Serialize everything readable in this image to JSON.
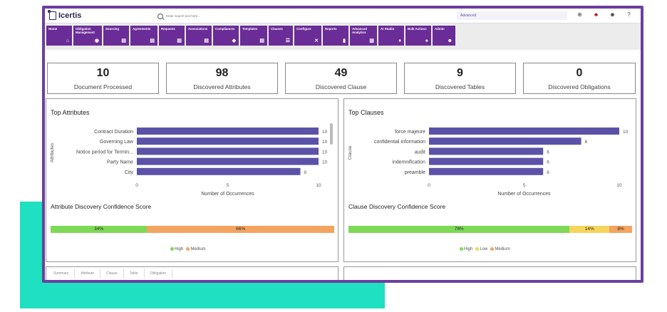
{
  "app": {
    "logo_text": "Icertis"
  },
  "search": {
    "placeholder": "Enter search text here...",
    "advanced_label": "Advanced"
  },
  "top_icons": [
    "add-circle-icon",
    "alert-user-icon",
    "users-icon",
    "help-icon"
  ],
  "nav": [
    {
      "label": "Home",
      "icon": "home-icon",
      "glyph": "⌂"
    },
    {
      "label": "Obligation Management",
      "icon": "eye-icon",
      "glyph": "◉"
    },
    {
      "label": "Sourcing",
      "icon": "doc-icon",
      "glyph": "▤"
    },
    {
      "label": "Agreements",
      "icon": "doc-icon",
      "glyph": "▤"
    },
    {
      "label": "Requests",
      "icon": "doc-icon",
      "glyph": "▤"
    },
    {
      "label": "Associations",
      "icon": "doc-icon",
      "glyph": "▤"
    },
    {
      "label": "Compliances",
      "icon": "tag-icon",
      "glyph": "◆"
    },
    {
      "label": "Templates",
      "icon": "doc-icon",
      "glyph": "▤"
    },
    {
      "label": "Clauses",
      "icon": "list-icon",
      "glyph": "☰"
    },
    {
      "label": "Configure",
      "icon": "tools-icon",
      "glyph": "✕"
    },
    {
      "label": "Reports",
      "icon": "report-icon",
      "glyph": "▮"
    },
    {
      "label": "Advanced Analytics",
      "icon": "chart-icon",
      "glyph": "▥"
    },
    {
      "label": "AI Studio",
      "icon": "bulb-icon",
      "glyph": "♦"
    },
    {
      "label": "Bulk Actions",
      "icon": "circle-icon",
      "glyph": "●"
    },
    {
      "label": "Admin",
      "icon": "users-icon",
      "glyph": "☻"
    }
  ],
  "stats": [
    {
      "value": "10",
      "label": "Document Processed"
    },
    {
      "value": "98",
      "label": "Discovered Attributes"
    },
    {
      "value": "49",
      "label": "Discovered Clause"
    },
    {
      "value": "9",
      "label": "Discovered Tables"
    },
    {
      "value": "0",
      "label": "Discovered Obligations"
    }
  ],
  "attributes_panel": {
    "title": "Top Attributes",
    "score_title": "Attribute Discovery Confidence Score",
    "confidence": [
      {
        "label": "High",
        "percent": 34,
        "text": "34%",
        "color": "#7ed957"
      },
      {
        "label": "Medium",
        "percent": 66,
        "text": "66%",
        "color": "#f4a460"
      }
    ]
  },
  "clauses_panel": {
    "title": "Top Clauses",
    "score_title": "Clause Discovery Confidence Score",
    "confidence": [
      {
        "label": "High",
        "percent": 78,
        "text": "78%",
        "color": "#7ed957"
      },
      {
        "label": "Low",
        "percent": 14,
        "text": "14%",
        "color": "#f6d55c"
      },
      {
        "label": "Medium",
        "percent": 8,
        "text": "8%",
        "color": "#f4a460"
      }
    ]
  },
  "bottom_tabs": [
    "Summary",
    "Attribute",
    "Clause",
    "Table",
    "Obligation"
  ],
  "colors": {
    "bar": "#5b52a8",
    "nav": "#6a2c96",
    "frame": "#6b3fa0",
    "teal": "#1fe0c0"
  },
  "chart_data": [
    {
      "type": "bar",
      "orientation": "horizontal",
      "categories": [
        "Contract Duration",
        "Governing Law",
        "Notice period for Termin...",
        "Party Name",
        "City"
      ],
      "values": [
        10,
        10,
        10,
        10,
        9
      ],
      "xlabel": "Number of Occurrences",
      "ylabel": "Attributes",
      "xlim": [
        0,
        10
      ],
      "xticks": [
        0,
        5,
        10
      ],
      "data_labels": true
    },
    {
      "type": "bar",
      "orientation": "horizontal",
      "categories": [
        "force majeure",
        "confidential information",
        "audit",
        "indemnification",
        "preamble"
      ],
      "values": [
        10,
        8,
        6,
        6,
        6
      ],
      "xlabel": "Number of Occurrences",
      "ylabel": "Clause",
      "xlim": [
        0,
        10
      ],
      "xticks": [
        0,
        5,
        10
      ],
      "data_labels": true
    }
  ]
}
